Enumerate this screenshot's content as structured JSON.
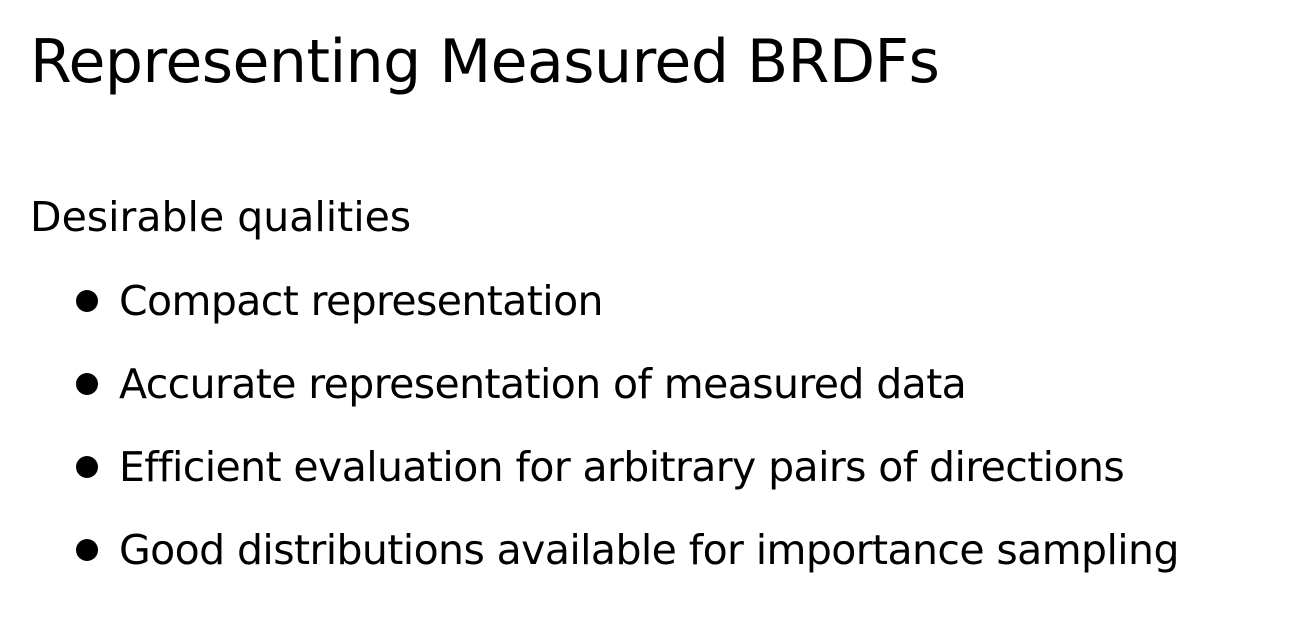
{
  "slide": {
    "title": "Representing Measured BRDFs",
    "subheading": "Desirable qualities",
    "bullets": [
      {
        "text": "Compact representation"
      },
      {
        "text": "Accurate representation of measured data"
      },
      {
        "text": "Efficient evaluation for arbitrary pairs of directions"
      },
      {
        "text": "Good distributions available for importance sampling"
      }
    ]
  }
}
